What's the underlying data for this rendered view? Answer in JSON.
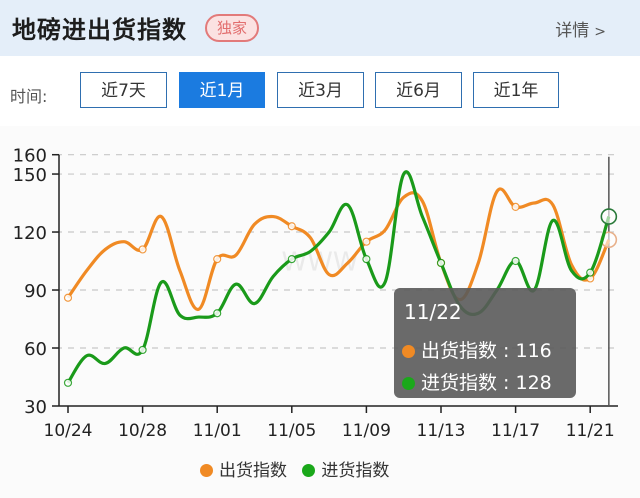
{
  "header": {
    "title": "地磅进出货指数",
    "badge": "独家",
    "details_label": "详情",
    "details_icon": "chevron-right-icon"
  },
  "time_filter": {
    "label": "时间:",
    "options": [
      {
        "label": "近7天",
        "active": false
      },
      {
        "label": "近1月",
        "active": true
      },
      {
        "label": "近3月",
        "active": false
      },
      {
        "label": "近6月",
        "active": false
      },
      {
        "label": "近1年",
        "active": false
      }
    ]
  },
  "colors": {
    "accent": "#1b7be0",
    "outbound": "#f08a24",
    "inbound": "#1a9a1a",
    "header_bg": "#e4eef9"
  },
  "tooltip": {
    "date": "11/22",
    "rows": [
      {
        "label": "出货指数",
        "value": "116"
      },
      {
        "label": "进货指数",
        "value": "128"
      }
    ]
  },
  "legend": [
    {
      "label": "出货指数",
      "color": "#f08a24"
    },
    {
      "label": "进货指数",
      "color": "#1a9a1a"
    }
  ],
  "chart_data": {
    "type": "line",
    "title": "地磅进出货指数",
    "xlabel": "",
    "ylabel": "",
    "ylim": [
      30,
      160
    ],
    "yticks": [
      30,
      60,
      90,
      120,
      150,
      160
    ],
    "grid": true,
    "legend_position": "bottom",
    "xtick_labels": [
      "10/24",
      "10/28",
      "11/01",
      "11/05",
      "11/09",
      "11/13",
      "11/17",
      "11/21"
    ],
    "x": [
      "10/24",
      "10/25",
      "10/26",
      "10/27",
      "10/28",
      "10/29",
      "10/30",
      "10/31",
      "11/01",
      "11/02",
      "11/03",
      "11/04",
      "11/05",
      "11/06",
      "11/07",
      "11/08",
      "11/09",
      "11/10",
      "11/11",
      "11/12",
      "11/13",
      "11/14",
      "11/15",
      "11/16",
      "11/17",
      "11/18",
      "11/19",
      "11/20",
      "11/21",
      "11/22"
    ],
    "series": [
      {
        "name": "出货指数",
        "color": "#f08a24",
        "values": [
          86,
          100,
          111,
          115,
          111,
          128,
          100,
          80,
          106,
          108,
          124,
          128,
          123,
          117,
          98,
          104,
          115,
          121,
          138,
          136,
          104,
          85,
          104,
          141,
          133,
          135,
          134,
          103,
          96,
          116
        ]
      },
      {
        "name": "进货指数",
        "color": "#1a9a1a",
        "values": [
          42,
          56,
          52,
          60,
          59,
          94,
          77,
          76,
          78,
          93,
          83,
          97,
          106,
          110,
          120,
          134,
          106,
          94,
          150,
          128,
          104,
          82,
          78,
          90,
          105,
          90,
          126,
          100,
          99,
          128
        ]
      }
    ],
    "highlighted": {
      "x": "11/22",
      "出货指数": 116,
      "进货指数": 128
    }
  }
}
